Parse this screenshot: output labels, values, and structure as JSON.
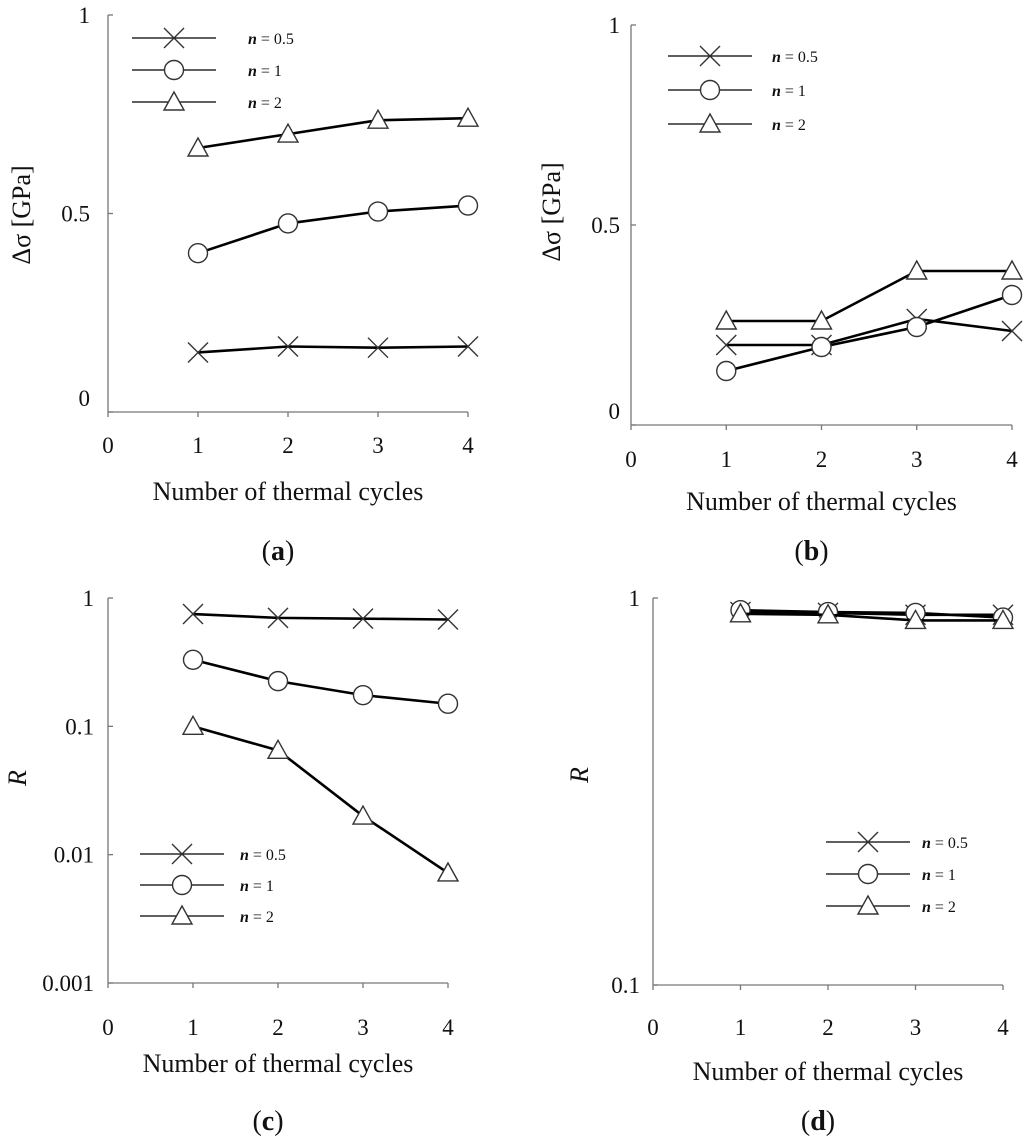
{
  "legend_labels": [
    "n = 0.5",
    "n = 1",
    "n = 2"
  ],
  "chart_data": [
    {
      "id": "a",
      "type": "line",
      "panel_label": "(a)",
      "xlabel": "Number of thermal cycles",
      "ylabel": "Δσ [GPa]",
      "yscale": "linear",
      "xlim": [
        0,
        4
      ],
      "ylim": [
        0,
        1
      ],
      "xticks": [
        "0",
        "1",
        "2",
        "3",
        "4"
      ],
      "yticks": [
        {
          "value": 0,
          "label": "0"
        },
        {
          "value": 0.5,
          "label": "0.5"
        },
        {
          "value": 1,
          "label": "1"
        }
      ],
      "legend_position": "top-left",
      "x": [
        1,
        2,
        3,
        4
      ],
      "series": [
        {
          "name": "n = 0.5",
          "marker": "x",
          "values": [
            0.15,
            0.165,
            0.162,
            0.165
          ]
        },
        {
          "name": "n = 1",
          "marker": "circle",
          "values": [
            0.4,
            0.475,
            0.505,
            0.52
          ]
        },
        {
          "name": "n = 2",
          "marker": "triangle",
          "values": [
            0.665,
            0.7,
            0.735,
            0.74
          ]
        }
      ]
    },
    {
      "id": "b",
      "type": "line",
      "panel_label": "(b)",
      "xlabel": "Number of thermal cycles",
      "ylabel": "Δσ [GPa]",
      "yscale": "linear",
      "xlim": [
        0,
        4
      ],
      "ylim": [
        0,
        1
      ],
      "xticks": [
        "0",
        "1",
        "2",
        "3",
        "4"
      ],
      "yticks": [
        {
          "value": 0,
          "label": "0"
        },
        {
          "value": 0.5,
          "label": "0.5"
        },
        {
          "value": 1,
          "label": "1"
        }
      ],
      "legend_position": "top-left",
      "x": [
        1,
        2,
        3,
        4
      ],
      "series": [
        {
          "name": "n = 0.5",
          "marker": "x",
          "values": [
            0.2,
            0.2,
            0.265,
            0.235
          ]
        },
        {
          "name": "n = 1",
          "marker": "circle",
          "values": [
            0.135,
            0.195,
            0.245,
            0.325
          ]
        },
        {
          "name": "n = 2",
          "marker": "triangle",
          "values": [
            0.26,
            0.26,
            0.385,
            0.385
          ]
        }
      ]
    },
    {
      "id": "c",
      "type": "line",
      "panel_label": "(c)",
      "xlabel": "Number of thermal cycles",
      "ylabel": "R",
      "yscale": "log",
      "xlim": [
        0,
        4
      ],
      "ylim": [
        0.001,
        1
      ],
      "xticks": [
        "0",
        "1",
        "2",
        "3",
        "4"
      ],
      "yticks": [
        {
          "value": 0.001,
          "label": "0.001"
        },
        {
          "value": 0.01,
          "label": "0.01"
        },
        {
          "value": 0.1,
          "label": "0.1"
        },
        {
          "value": 1,
          "label": "1"
        }
      ],
      "legend_position": "bottom-left",
      "x": [
        1,
        2,
        3,
        4
      ],
      "series": [
        {
          "name": "n = 0.5",
          "marker": "x",
          "values": [
            0.75,
            0.7,
            0.69,
            0.68
          ]
        },
        {
          "name": "n = 1",
          "marker": "circle",
          "values": [
            0.33,
            0.225,
            0.175,
            0.15
          ]
        },
        {
          "name": "n = 2",
          "marker": "triangle",
          "values": [
            0.1,
            0.065,
            0.02,
            0.0072
          ]
        }
      ]
    },
    {
      "id": "d",
      "type": "line",
      "panel_label": "(d)",
      "xlabel": "Number of thermal cycles",
      "ylabel": "R",
      "yscale": "log",
      "xlim": [
        0,
        4
      ],
      "ylim": [
        0.1,
        1
      ],
      "xticks": [
        "0",
        "1",
        "2",
        "3",
        "4"
      ],
      "yticks": [
        {
          "value": 0.1,
          "label": "0.1"
        },
        {
          "value": 1,
          "label": "1"
        }
      ],
      "legend_position": "middle-right",
      "x": [
        1,
        2,
        3,
        4
      ],
      "series": [
        {
          "name": "n = 0.5",
          "marker": "x",
          "values": [
            0.92,
            0.915,
            0.905,
            0.905
          ]
        },
        {
          "name": "n = 1",
          "marker": "circle",
          "values": [
            0.93,
            0.92,
            0.915,
            0.89
          ]
        },
        {
          "name": "n = 2",
          "marker": "triangle",
          "values": [
            0.91,
            0.905,
            0.875,
            0.875
          ]
        }
      ]
    }
  ]
}
